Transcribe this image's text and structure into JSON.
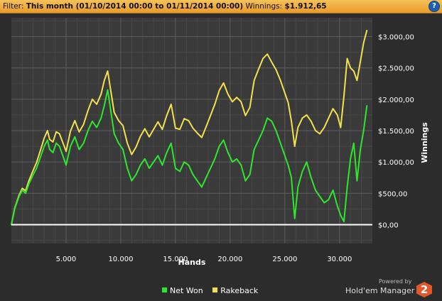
{
  "filter": {
    "label": "Filter:",
    "range": "This month (01/10/2014 00:00 to 01/11/2014 00:00)",
    "winnings_label": "Winnings:",
    "winnings_value": "$1.912,65"
  },
  "help_label": "?",
  "powered_by": "Powered by",
  "brand": "Hold'em Manager",
  "brand_badge": "2",
  "chart_data": {
    "type": "line",
    "xlabel": "Hands",
    "ylabel": "Winnings",
    "xlim": [
      0,
      33000
    ],
    "ylim": [
      -300,
      3300
    ],
    "x_ticks": [
      5000,
      10000,
      15000,
      20000,
      25000,
      30000
    ],
    "x_tick_labels": [
      "5.000",
      "10.000",
      "15.000",
      "20.000",
      "25.000",
      "30.000"
    ],
    "y_ticks": [
      0,
      500,
      1000,
      1500,
      2000,
      2500,
      3000
    ],
    "y_tick_labels": [
      "$0,00",
      "$500,00",
      "$1.000,00",
      "$1.500,00",
      "$2.000,00",
      "$2.500,00",
      "$3.000,00"
    ],
    "grid": true,
    "legend": "bottom-center",
    "series": [
      {
        "name": "Net Won",
        "color": "#2ee62e",
        "x": [
          0,
          300,
          700,
          1000,
          1300,
          1600,
          2000,
          2300,
          2700,
          3000,
          3300,
          3500,
          3800,
          4100,
          4400,
          4700,
          5000,
          5400,
          5800,
          6200,
          6600,
          7000,
          7400,
          7800,
          8200,
          8500,
          8800,
          9100,
          9400,
          9800,
          10200,
          10600,
          11000,
          11400,
          11800,
          12200,
          12600,
          13000,
          13400,
          13800,
          14200,
          14600,
          15000,
          15400,
          15800,
          16200,
          16600,
          17000,
          17400,
          17800,
          18200,
          18600,
          19000,
          19400,
          19800,
          20200,
          20600,
          21000,
          21400,
          21800,
          22200,
          22600,
          23000,
          23400,
          23800,
          24200,
          24600,
          25000,
          25300,
          25600,
          25900,
          26200,
          26600,
          27000,
          27400,
          27800,
          28200,
          28600,
          29000,
          29400,
          29800,
          30100,
          30400,
          30700,
          31000,
          31300,
          31600,
          31900,
          32200,
          32500
        ],
        "values": [
          0,
          250,
          450,
          550,
          500,
          650,
          800,
          900,
          1100,
          1250,
          1350,
          1200,
          1150,
          1300,
          1250,
          1100,
          950,
          1250,
          1400,
          1200,
          1300,
          1500,
          1650,
          1550,
          1700,
          1900,
          2150,
          1800,
          1450,
          1300,
          1200,
          900,
          700,
          800,
          950,
          1050,
          900,
          1000,
          1100,
          950,
          1150,
          1300,
          900,
          850,
          1000,
          950,
          800,
          700,
          600,
          750,
          900,
          1050,
          1250,
          1350,
          1150,
          1000,
          1050,
          950,
          700,
          800,
          1200,
          1350,
          1500,
          1700,
          1650,
          1500,
          1300,
          1100,
          950,
          750,
          100,
          600,
          850,
          1000,
          750,
          550,
          450,
          350,
          400,
          550,
          300,
          150,
          50,
          600,
          1050,
          1300,
          700,
          1200,
          1500,
          1900
        ]
      },
      {
        "name": "Rakeback",
        "color": "#f2e14c",
        "x": [
          0,
          300,
          700,
          1000,
          1300,
          1600,
          2000,
          2300,
          2700,
          3000,
          3300,
          3500,
          3800,
          4100,
          4400,
          4700,
          5000,
          5400,
          5800,
          6200,
          6600,
          7000,
          7400,
          7800,
          8200,
          8500,
          8800,
          9100,
          9400,
          9800,
          10200,
          10600,
          11000,
          11400,
          11800,
          12200,
          12600,
          13000,
          13400,
          13800,
          14200,
          14600,
          15000,
          15400,
          15800,
          16200,
          16600,
          17000,
          17400,
          17800,
          18200,
          18600,
          19000,
          19400,
          19800,
          20200,
          20600,
          21000,
          21400,
          21800,
          22200,
          22600,
          23000,
          23400,
          23800,
          24200,
          24600,
          25000,
          25300,
          25600,
          25900,
          26200,
          26600,
          27000,
          27400,
          27800,
          28200,
          28600,
          29000,
          29400,
          29800,
          30100,
          30400,
          30700,
          31000,
          31300,
          31600,
          31900,
          32200,
          32500
        ],
        "values": [
          0,
          260,
          470,
          580,
          540,
          700,
          870,
          990,
          1210,
          1380,
          1500,
          1360,
          1320,
          1480,
          1450,
          1310,
          1170,
          1490,
          1660,
          1480,
          1600,
          1820,
          2000,
          1920,
          2080,
          2300,
          2450,
          2120,
          1790,
          1660,
          1580,
          1300,
          1120,
          1240,
          1410,
          1530,
          1400,
          1520,
          1640,
          1520,
          1740,
          1920,
          1540,
          1520,
          1690,
          1660,
          1540,
          1460,
          1390,
          1560,
          1740,
          1920,
          2140,
          2260,
          2080,
          1960,
          2030,
          1960,
          1740,
          1870,
          2300,
          2480,
          2650,
          2720,
          2590,
          2470,
          2300,
          2100,
          1950,
          1650,
          1250,
          1550,
          1700,
          1750,
          1650,
          1500,
          1450,
          1550,
          1700,
          1850,
          1750,
          1550,
          2050,
          2650,
          2500,
          2450,
          2300,
          2600,
          2900,
          3100
        ]
      }
    ]
  }
}
